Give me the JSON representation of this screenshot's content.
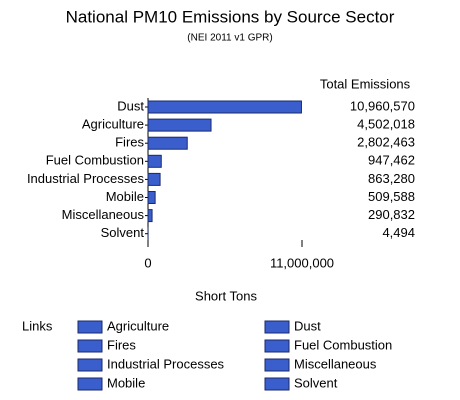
{
  "chart_data": {
    "type": "bar",
    "orientation": "horizontal",
    "title": "National PM10 Emissions by Source Sector",
    "subtitle": "(NEI 2011 v1 GPR)",
    "value_header": "Total Emissions",
    "categories": [
      "Dust",
      "Agriculture",
      "Fires",
      "Fuel Combustion",
      "Industrial Processes",
      "Mobile",
      "Miscellaneous",
      "Solvent"
    ],
    "values": [
      10960570,
      4502018,
      2802463,
      947462,
      863280,
      509588,
      290832,
      4494
    ],
    "value_labels": [
      "10,960,570",
      "4,502,018",
      "2,802,463",
      "947,462",
      "863,280",
      "509,588",
      "290,832",
      "4,494"
    ],
    "color": "#3a5fcd",
    "xlim": [
      0,
      11000000
    ],
    "xticks": [
      0,
      {
        "value": 11000000,
        "label": "11,000,000"
      }
    ],
    "xlabel": "Short Tons"
  },
  "links": {
    "label": "Links",
    "items": [
      "Agriculture",
      "Dust",
      "Fires",
      "Fuel Combustion",
      "Industrial Processes",
      "Miscellaneous",
      "Mobile",
      "Solvent"
    ]
  }
}
